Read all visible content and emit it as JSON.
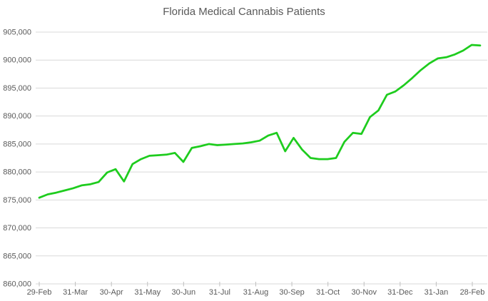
{
  "colors": {
    "line": "#1ecc1e",
    "grid": "#d9d9d9",
    "tick": "#bfbfbf",
    "text": "#595959",
    "background": "#ffffff"
  },
  "chart_data": {
    "type": "line",
    "title": "Florida Medical Cannabis Patients",
    "xlabel": "",
    "ylabel": "",
    "ylim": [
      860000,
      905000
    ],
    "y_tick_step": 5000,
    "grid": "horizontal-only",
    "legend": "none",
    "x_tick_labels": [
      "29-Feb",
      "31-Mar",
      "30-Apr",
      "31-May",
      "30-Jun",
      "31-Jul",
      "31-Aug",
      "30-Sep",
      "31-Oct",
      "30-Nov",
      "31-Dec",
      "31-Jan",
      "28-Feb"
    ],
    "y_ticks": [
      {
        "value": 860000,
        "label": "860,000"
      },
      {
        "value": 865000,
        "label": "865,000"
      },
      {
        "value": 870000,
        "label": "870,000"
      },
      {
        "value": 875000,
        "label": "875,000"
      },
      {
        "value": 880000,
        "label": "880,000"
      },
      {
        "value": 885000,
        "label": "885,000"
      },
      {
        "value": 890000,
        "label": "890,000"
      },
      {
        "value": 895000,
        "label": "895,000"
      },
      {
        "value": 900000,
        "label": "900,000"
      },
      {
        "value": 905000,
        "label": "905,000"
      }
    ],
    "series": [
      {
        "cadence": "weekly",
        "values": [
          875400,
          876000,
          876300,
          876700,
          877100,
          877600,
          877800,
          878200,
          879900,
          880500,
          878300,
          881400,
          882300,
          882900,
          883000,
          883100,
          883400,
          881800,
          884300,
          884600,
          885000,
          884800,
          884900,
          885000,
          885100,
          885300,
          885600,
          886500,
          887000,
          883700,
          886100,
          884000,
          882500,
          882300,
          882300,
          882500,
          885400,
          887000,
          886800,
          889800,
          891000,
          893800,
          894400,
          895500,
          896800,
          898200,
          899400,
          900300,
          900500,
          901000,
          901700,
          902700,
          902600
        ]
      }
    ]
  }
}
